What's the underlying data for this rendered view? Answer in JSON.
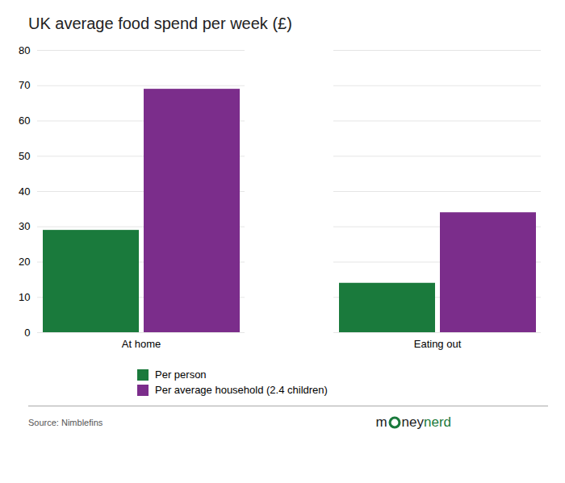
{
  "chart_data": {
    "type": "bar",
    "title": "UK average food spend per week (£)",
    "categories": [
      "At home",
      "Eating out"
    ],
    "series": [
      {
        "name": "Per person",
        "color": "#1a7a3c",
        "values": [
          29,
          14
        ]
      },
      {
        "name": "Per average household (2.4 children)",
        "color": "#7b2d8b",
        "values": [
          69,
          34
        ]
      }
    ],
    "ylim": [
      0,
      80
    ],
    "yticks": [
      0,
      10,
      20,
      30,
      40,
      50,
      60,
      70,
      80
    ],
    "grid": true,
    "legend": "bottom",
    "annotations": [
      "Source: Nimblefins",
      "m",
      "ney",
      "nerd"
    ]
  }
}
